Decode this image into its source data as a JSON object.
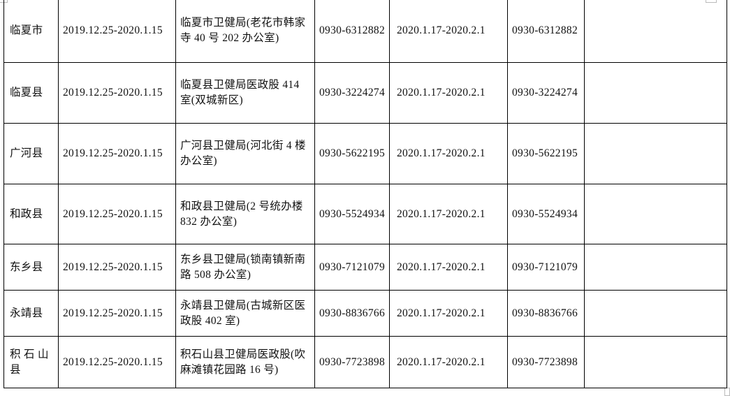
{
  "rows": [
    {
      "region": "临夏市",
      "period1": "2019.12.25-2020.1.15",
      "location": "临夏市卫健局(老花市韩家寺 40 号 202 办公室)",
      "phone1": "0930-6312882",
      "period2": "2020.1.17-2020.2.1",
      "phone2": "0930-6312882",
      "note": ""
    },
    {
      "region": "临夏县",
      "period1": "2019.12.25-2020.1.15",
      "location": "临夏县卫健局医政股 414 室(双城新区)",
      "phone1": "0930-3224274",
      "period2": "2020.1.17-2020.2.1",
      "phone2": "0930-3224274",
      "note": ""
    },
    {
      "region": "广河县",
      "period1": "2019.12.25-2020.1.15",
      "location": "广河县卫健局(河北街 4 楼办公室)",
      "phone1": "0930-5622195",
      "period2": "2020.1.17-2020.2.1",
      "phone2": "0930-5622195",
      "note": ""
    },
    {
      "region": "和政县",
      "period1": "2019.12.25-2020.1.15",
      "location": "和政县卫健局(2 号统办楼 832 办公室)",
      "phone1": "0930-5524934",
      "period2": "2020.1.17-2020.2.1",
      "phone2": "0930-5524934",
      "note": ""
    },
    {
      "region": "东乡县",
      "period1": "2019.12.25-2020.1.15",
      "location": "东乡县卫健局(锁南镇新南路 508 办公室)",
      "phone1": "0930-7121079",
      "period2": "2020.1.17-2020.2.1",
      "phone2": "0930-7121079",
      "note": ""
    },
    {
      "region": "永靖县",
      "period1": "2019.12.25-2020.1.15",
      "location": "永靖县卫健局(古城新区医政股 402 室)",
      "phone1": "0930-8836766",
      "period2": "2020.1.17-2020.2.1",
      "phone2": "0930-8836766",
      "note": ""
    },
    {
      "region": "积 石 山 县",
      "period1": "2019.12.25-2020.1.15",
      "location": "积石山县卫健局医政股(吹麻滩镇花园路 16 号)",
      "phone1": "0930-7723898",
      "period2": "2020.1.17-2020.2.1",
      "phone2": "0930-7723898",
      "note": ""
    }
  ]
}
